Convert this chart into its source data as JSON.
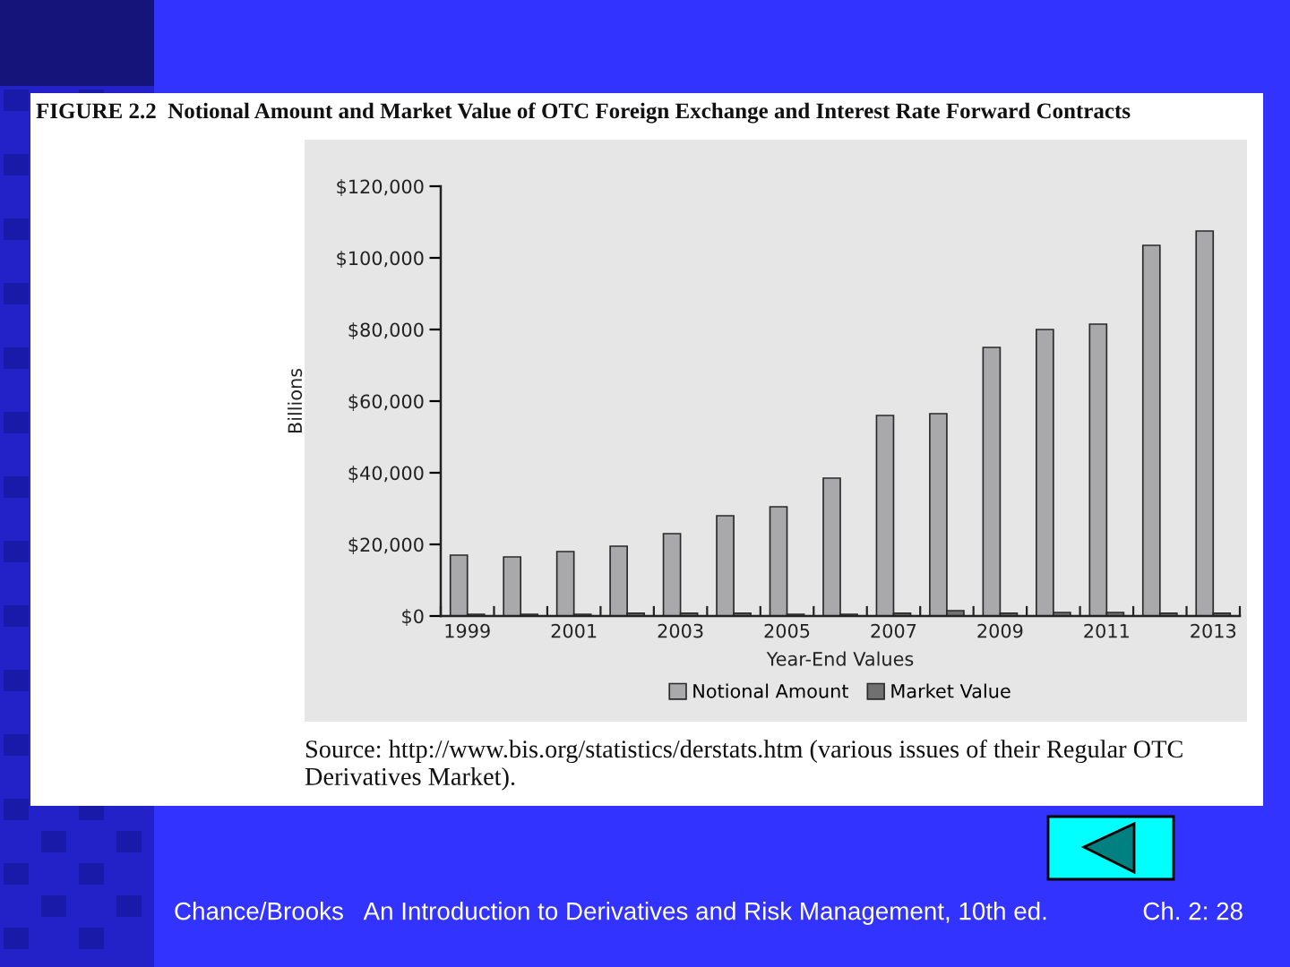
{
  "chart_data": {
    "type": "bar",
    "title": "FIGURE 2.2  Notional Amount and Market Value of OTC Foreign Exchange and Interest Rate Forward Contracts",
    "xlabel": "Year-End Values",
    "ylabel": "Billions",
    "categories": [
      "1999",
      null,
      "2001",
      null,
      "2003",
      null,
      "2005",
      null,
      "2007",
      null,
      "2009",
      null,
      "2011",
      null,
      "2013"
    ],
    "series": [
      {
        "name": "Notional Amount",
        "color": "#a9a9ab",
        "values": [
          17000,
          16500,
          18000,
          19500,
          23000,
          28000,
          30500,
          38500,
          56000,
          56500,
          75000,
          80000,
          81500,
          103500,
          107500
        ]
      },
      {
        "name": "Market Value",
        "color": "#707070",
        "values": [
          500,
          500,
          500,
          800,
          800,
          800,
          500,
          500,
          800,
          1500,
          800,
          1000,
          1000,
          800,
          800
        ]
      }
    ],
    "ylim": [
      0,
      120000
    ],
    "yticks": [
      {
        "value": 0,
        "label": "$0"
      },
      {
        "value": 20000,
        "label": "$20,000"
      },
      {
        "value": 40000,
        "label": "$40,000"
      },
      {
        "value": 60000,
        "label": "$60,000"
      },
      {
        "value": 80000,
        "label": "$80,000"
      },
      {
        "value": 100000,
        "label": "$100,000"
      },
      {
        "value": 120000,
        "label": "$120,000"
      }
    ],
    "legend": "bottom",
    "annotations": [
      "Source: http://www.bis.org/statistics/derstats.htm (various issues of their Regular OTC Derivatives Market).",
      "Chance/Brooks   An Introduction to Derivatives and Risk Management, 10th ed.",
      "Ch. 2: 28"
    ]
  }
}
